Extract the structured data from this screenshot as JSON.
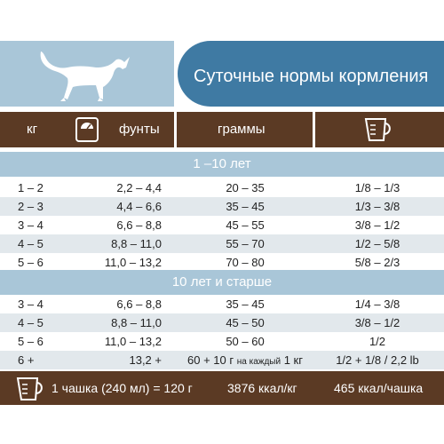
{
  "header": {
    "title": "Суточные нормы кормления"
  },
  "columns": {
    "kg": "кг",
    "lb": "фунты",
    "grams": "граммы"
  },
  "icons": {
    "cat": "cat-silhouette-icon",
    "scale": "scale-icon",
    "cup": "measuring-cup-icon"
  },
  "colors": {
    "brown": "#5b3a24",
    "light_blue": "#a9c6d8",
    "dark_blue": "#3f7aa3",
    "row_shade": "#e2e8ec"
  },
  "sections": [
    {
      "title": "1 –10 лет",
      "rows": [
        {
          "kg": "1 – 2",
          "lb": "2,2 – 4,4",
          "grams": "20 – 35",
          "cups": "1/8 – 1/3"
        },
        {
          "kg": "2 – 3",
          "lb": "4,4 – 6,6",
          "grams": "35 – 45",
          "cups": "1/3 – 3/8"
        },
        {
          "kg": "3 – 4",
          "lb": "6,6 – 8,8",
          "grams": "45 – 55",
          "cups": "3/8 – 1/2"
        },
        {
          "kg": "4 – 5",
          "lb": "8,8 – 11,0",
          "grams": "55 – 70",
          "cups": "1/2 – 5/8"
        },
        {
          "kg": "5 – 6",
          "lb": "11,0 – 13,2",
          "grams": "70 – 80",
          "cups": "5/8 – 2/3"
        }
      ]
    },
    {
      "title": "10 лет и старше",
      "rows": [
        {
          "kg": "3 – 4",
          "lb": "6,6 – 8,8",
          "grams": "35 – 45",
          "cups": "1/4 – 3/8"
        },
        {
          "kg": "4 – 5",
          "lb": "8,8 – 11,0",
          "grams": "45 – 50",
          "cups": "3/8 – 1/2"
        },
        {
          "kg": "5 – 6",
          "lb": "11,0 – 13,2",
          "grams": "50 – 60",
          "cups": "1/2"
        },
        {
          "kg": "6 +",
          "lb": "13,2 +",
          "grams": "60 + 10 г",
          "grams_note": "на каждый",
          "grams_tail": "1 кг",
          "cups": "1/2 + 1/8 / 2,2 lb"
        }
      ]
    }
  ],
  "footer": {
    "cup": "1 чашка (240 мл) = 120 г",
    "kcal_kg": "3876 ккал/кг",
    "kcal_cup": "465 ккал/чашка"
  }
}
